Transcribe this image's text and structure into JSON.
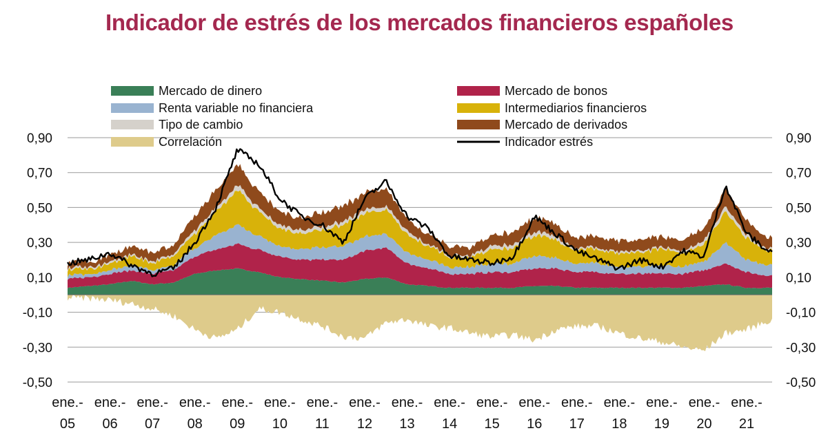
{
  "title": "Indicador de estrés de los mercados financieros españoles",
  "chart_data": {
    "type": "area",
    "stacked": true,
    "title": "Indicador de estrés de los mercados financieros españoles",
    "xlabel": "",
    "ylabel": "",
    "ylim": [
      -0.5,
      0.9
    ],
    "yticks": [
      "0,90",
      "0,70",
      "0,50",
      "0,30",
      "0,10",
      "-0,10",
      "-0,30",
      "-0,50"
    ],
    "ytick_values": [
      0.9,
      0.7,
      0.5,
      0.3,
      0.1,
      -0.1,
      -0.3,
      -0.5
    ],
    "xticks": [
      {
        "top": "ene.-",
        "bottom": "05"
      },
      {
        "top": "ene.-",
        "bottom": "06"
      },
      {
        "top": "ene.-",
        "bottom": "07"
      },
      {
        "top": "ene.-",
        "bottom": "08"
      },
      {
        "top": "ene.-",
        "bottom": "09"
      },
      {
        "top": "ene.-",
        "bottom": "10"
      },
      {
        "top": "ene.-",
        "bottom": "11"
      },
      {
        "top": "ene.-",
        "bottom": "12"
      },
      {
        "top": "ene.-",
        "bottom": "13"
      },
      {
        "top": "ene.-",
        "bottom": "14"
      },
      {
        "top": "ene.-",
        "bottom": "15"
      },
      {
        "top": "ene.-",
        "bottom": "16"
      },
      {
        "top": "ene.-",
        "bottom": "17"
      },
      {
        "top": "ene.-",
        "bottom": "18"
      },
      {
        "top": "ene.-",
        "bottom": "19"
      },
      {
        "top": "ene.-",
        "bottom": "20"
      },
      {
        "top": "ene.-",
        "bottom": "21"
      }
    ],
    "x_years": [
      2005,
      2005.5,
      2006,
      2006.5,
      2007,
      2007.5,
      2008,
      2008.5,
      2009,
      2009.5,
      2010,
      2010.5,
      2011,
      2011.5,
      2012,
      2012.5,
      2013,
      2013.5,
      2014,
      2014.5,
      2015,
      2015.5,
      2016,
      2016.5,
      2017,
      2017.5,
      2018,
      2018.5,
      2019,
      2019.5,
      2020,
      2020.5,
      2021,
      2021.5
    ],
    "x_range": [
      2005,
      2021.6
    ],
    "legend_position": "top",
    "series": [
      {
        "name": "Mercado de dinero",
        "color": "#3a7f57",
        "values": [
          0.04,
          0.05,
          0.06,
          0.08,
          0.06,
          0.07,
          0.12,
          0.14,
          0.15,
          0.13,
          0.1,
          0.09,
          0.08,
          0.07,
          0.09,
          0.1,
          0.06,
          0.05,
          0.04,
          0.04,
          0.04,
          0.04,
          0.05,
          0.05,
          0.04,
          0.04,
          0.04,
          0.04,
          0.04,
          0.04,
          0.05,
          0.06,
          0.04,
          0.04
        ]
      },
      {
        "name": "Mercado de bonos",
        "color": "#b0234a",
        "values": [
          0.05,
          0.05,
          0.06,
          0.06,
          0.06,
          0.07,
          0.1,
          0.12,
          0.14,
          0.13,
          0.12,
          0.11,
          0.12,
          0.13,
          0.16,
          0.17,
          0.12,
          0.1,
          0.08,
          0.08,
          0.09,
          0.09,
          0.1,
          0.1,
          0.09,
          0.09,
          0.08,
          0.08,
          0.08,
          0.08,
          0.09,
          0.12,
          0.09,
          0.07
        ]
      },
      {
        "name": "Renta variable no financiera",
        "color": "#99b3d0",
        "values": [
          0.02,
          0.02,
          0.02,
          0.03,
          0.02,
          0.03,
          0.05,
          0.08,
          0.11,
          0.08,
          0.06,
          0.06,
          0.07,
          0.08,
          0.08,
          0.08,
          0.06,
          0.05,
          0.04,
          0.04,
          0.05,
          0.05,
          0.07,
          0.06,
          0.05,
          0.05,
          0.04,
          0.04,
          0.05,
          0.04,
          0.05,
          0.12,
          0.07,
          0.06
        ]
      },
      {
        "name": "Intermediarios financieros",
        "color": "#d8b20a",
        "values": [
          0.03,
          0.03,
          0.04,
          0.05,
          0.04,
          0.05,
          0.08,
          0.14,
          0.2,
          0.14,
          0.1,
          0.09,
          0.1,
          0.12,
          0.13,
          0.14,
          0.1,
          0.08,
          0.06,
          0.06,
          0.08,
          0.09,
          0.12,
          0.1,
          0.08,
          0.08,
          0.08,
          0.08,
          0.09,
          0.08,
          0.1,
          0.18,
          0.12,
          0.08
        ]
      },
      {
        "name": "Tipo de cambio",
        "color": "#d5d1cb",
        "values": [
          0.01,
          0.01,
          0.01,
          0.01,
          0.01,
          0.01,
          0.02,
          0.02,
          0.03,
          0.02,
          0.02,
          0.02,
          0.02,
          0.02,
          0.02,
          0.02,
          0.02,
          0.01,
          0.01,
          0.01,
          0.02,
          0.02,
          0.02,
          0.02,
          0.01,
          0.01,
          0.01,
          0.01,
          0.01,
          0.01,
          0.02,
          0.03,
          0.02,
          0.01
        ]
      },
      {
        "name": "Mercado de derivados",
        "color": "#8f4a1c",
        "values": [
          0.03,
          0.03,
          0.04,
          0.05,
          0.05,
          0.05,
          0.08,
          0.1,
          0.12,
          0.09,
          0.08,
          0.07,
          0.08,
          0.09,
          0.1,
          0.1,
          0.07,
          0.06,
          0.05,
          0.05,
          0.06,
          0.07,
          0.08,
          0.07,
          0.06,
          0.06,
          0.06,
          0.06,
          0.06,
          0.06,
          0.07,
          0.1,
          0.08,
          0.06
        ]
      },
      {
        "name": "Correlación",
        "color": "#decb8b",
        "values": [
          -0.02,
          -0.02,
          -0.03,
          -0.05,
          -0.08,
          -0.12,
          -0.2,
          -0.25,
          -0.2,
          -0.08,
          -0.1,
          -0.14,
          -0.18,
          -0.24,
          -0.25,
          -0.16,
          -0.14,
          -0.18,
          -0.19,
          -0.22,
          -0.24,
          -0.23,
          -0.26,
          -0.2,
          -0.18,
          -0.18,
          -0.22,
          -0.25,
          -0.27,
          -0.3,
          -0.32,
          -0.22,
          -0.2,
          -0.15
        ]
      }
    ],
    "line": {
      "name": "Indicador estrés",
      "color": "#000000",
      "values": [
        0.18,
        0.2,
        0.24,
        0.17,
        0.12,
        0.15,
        0.3,
        0.5,
        0.83,
        0.75,
        0.55,
        0.45,
        0.4,
        0.3,
        0.55,
        0.65,
        0.45,
        0.38,
        0.22,
        0.2,
        0.18,
        0.22,
        0.45,
        0.35,
        0.25,
        0.2,
        0.15,
        0.2,
        0.16,
        0.25,
        0.22,
        0.63,
        0.35,
        0.25
      ]
    }
  }
}
